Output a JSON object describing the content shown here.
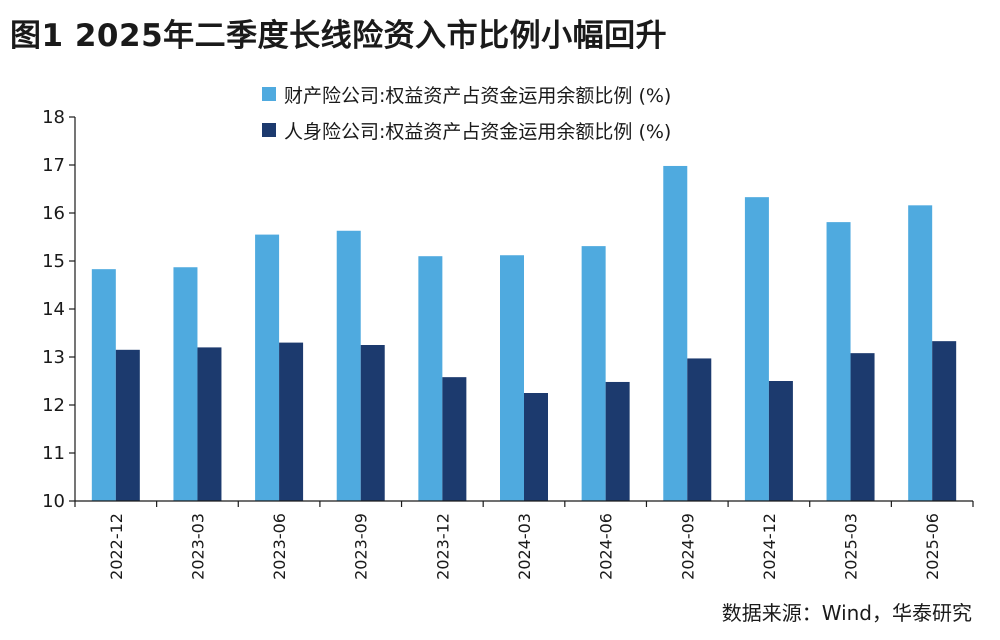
{
  "title": "图1  2025年二季度长线险资入市比例小幅回升",
  "source": "数据来源：Wind，华泰研究",
  "colors": {
    "series1": "#4faadf",
    "series2": "#1c3a6e",
    "axis": "#1a1a1a"
  },
  "chart_data": {
    "type": "bar",
    "title": "",
    "xlabel": "",
    "ylabel": "",
    "ylim": [
      10,
      18
    ],
    "yticks": [
      10,
      11,
      12,
      13,
      14,
      15,
      16,
      17,
      18
    ],
    "grid": false,
    "legend_position": "top",
    "categories": [
      "2022-12",
      "2023-03",
      "2023-06",
      "2023-09",
      "2023-12",
      "2024-03",
      "2024-06",
      "2024-09",
      "2024-12",
      "2025-03",
      "2025-06"
    ],
    "series": [
      {
        "name": "财产险公司:权益资产占资金运用余额比例 (%)",
        "values": [
          14.83,
          14.87,
          15.55,
          15.63,
          15.1,
          15.12,
          15.31,
          16.98,
          16.33,
          15.81,
          16.16
        ]
      },
      {
        "name": "人身险公司:权益资产占资金运用余额比例 (%)",
        "values": [
          13.15,
          13.2,
          13.3,
          13.25,
          12.58,
          12.25,
          12.48,
          12.97,
          12.5,
          13.08,
          13.33
        ]
      }
    ]
  }
}
